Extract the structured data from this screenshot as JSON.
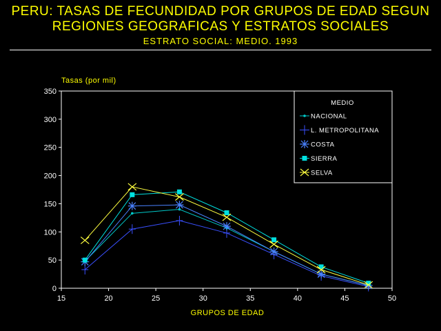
{
  "header": {
    "title_line1": "PERU: TASAS DE FECUNDIDAD POR GRUPOS DE EDAD SEGUN",
    "title_line2": "REGIONES GEOGRAFICAS Y ESTRATOS SOCIALES",
    "subtitle": "ESTRATO SOCIAL: MEDIO. 1993"
  },
  "chart_data": {
    "type": "line",
    "title": "PERU: TASAS DE FECUNDIDAD POR GRUPOS DE EDAD SEGUN REGIONES GEOGRAFICAS Y ESTRATOS SOCIALES",
    "subtitle": "ESTRATO SOCIAL: MEDIO. 1993",
    "xlabel": "GRUPOS DE EDAD",
    "ylabel": "Tasas (por mil)",
    "xlim": [
      15,
      50
    ],
    "ylim": [
      0,
      350
    ],
    "x_ticks": [
      "15",
      "20",
      "25",
      "30",
      "35",
      "40",
      "45",
      "50"
    ],
    "y_ticks": [
      "0",
      "50",
      "100",
      "150",
      "200",
      "250",
      "300",
      "350"
    ],
    "x": [
      17.5,
      22.5,
      27.5,
      32.5,
      37.5,
      42.5,
      47.5
    ],
    "grid": false,
    "legend": {
      "title": "MEDIO",
      "placement": "top-right"
    },
    "series": [
      {
        "name": "NACIONAL",
        "color": "#00c8c8",
        "marker": "dot",
        "values": [
          48,
          133,
          140,
          107,
          65,
          25,
          5
        ]
      },
      {
        "name": "L. METROPOLITANA",
        "color": "#3a50ff",
        "marker": "plus",
        "values": [
          33,
          105,
          120,
          98,
          60,
          22,
          3
        ]
      },
      {
        "name": "COSTA",
        "color": "#4a82ff",
        "marker": "asterisk",
        "values": [
          47,
          146,
          148,
          110,
          65,
          25,
          5
        ]
      },
      {
        "name": "SIERRA",
        "color": "#00e0e0",
        "marker": "square",
        "values": [
          50,
          166,
          171,
          134,
          86,
          38,
          9
        ]
      },
      {
        "name": "SELVA",
        "color": "#ffff40",
        "marker": "x",
        "values": [
          85,
          180,
          162,
          126,
          78,
          33,
          6
        ]
      }
    ]
  }
}
